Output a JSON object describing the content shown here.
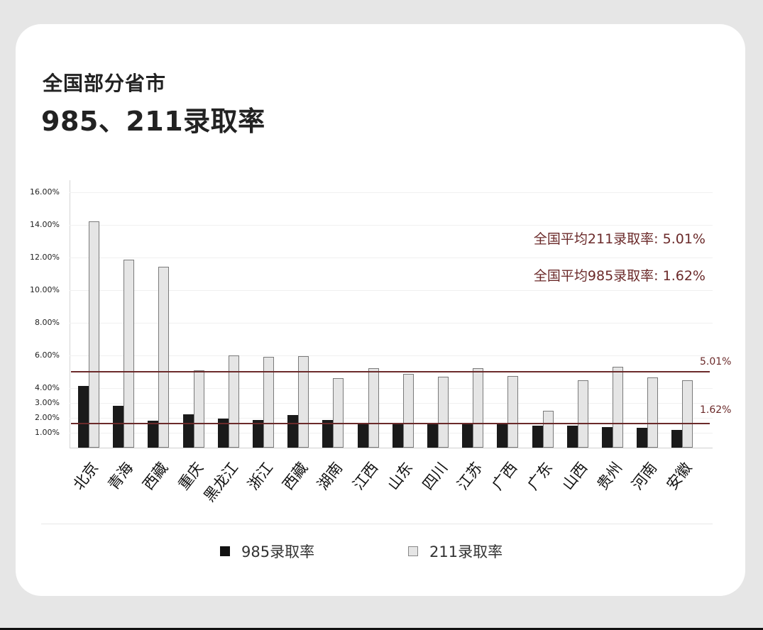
{
  "title": {
    "line1": "全国部分省市",
    "line2": "985、211录取率"
  },
  "notes": {
    "avg211": "全国平均211录取率: 5.01%",
    "avg985": "全国平均985录取率: 1.62%"
  },
  "avg_labels": {
    "avg211": "5.01%",
    "avg985": "1.62%"
  },
  "legend": {
    "s985": "985录取率",
    "s211": "211录取率"
  },
  "colors": {
    "s985": "#1a1a1a",
    "s211": "#e5e5e5",
    "avg_line": "#6b2a2a",
    "background": "#e6e6e6",
    "card": "#ffffff"
  },
  "yticks": [
    "16.00%",
    "14.00%",
    "12.00%",
    "10.00%",
    "8.00%",
    "6.00%",
    "4.00%",
    "3.00%",
    "2.00%",
    "1.00%"
  ],
  "chart_data": {
    "type": "bar",
    "title": "全国部分省市 985、211录取率",
    "xlabel": "",
    "ylabel": "",
    "categories": [
      "北京",
      "青海",
      "西藏",
      "重庆",
      "黑龙江",
      "浙江",
      "西藏",
      "湖南",
      "江西",
      "山东",
      "四川",
      "江苏",
      "广西",
      "广东",
      "山西",
      "贵州",
      "河南",
      "安徽"
    ],
    "series": [
      {
        "name": "985录取率",
        "values": [
          4.15,
          2.8,
          1.8,
          2.25,
          1.95,
          1.85,
          2.2,
          1.85,
          1.65,
          1.6,
          1.6,
          1.55,
          1.55,
          1.5,
          1.5,
          1.4,
          1.35,
          1.2
        ]
      },
      {
        "name": "211录取率",
        "values": [
          14.2,
          11.85,
          11.45,
          5.1,
          6.0,
          5.9,
          5.95,
          4.6,
          5.2,
          4.85,
          4.7,
          5.2,
          4.75,
          2.5,
          4.5,
          5.3,
          4.65,
          4.5
        ]
      }
    ],
    "reference_lines": [
      {
        "name": "全国平均211录取率",
        "value": 5.01,
        "label": "5.01%"
      },
      {
        "name": "全国平均985录取率",
        "value": 1.62,
        "label": "1.62%"
      }
    ],
    "yticks": [
      1,
      2,
      3,
      4,
      6,
      8,
      10,
      12,
      14,
      16
    ],
    "ytick_labels": [
      "1.00%",
      "2.00%",
      "3.00%",
      "4.00%",
      "6.00%",
      "8.00%",
      "10.00%",
      "12.00%",
      "14.00%",
      "16.00%"
    ],
    "ylim": [
      0,
      16
    ],
    "y_scale_note": "non-uniform axis: 1% steps below 4%, 2% steps above",
    "grid": true,
    "legend_position": "bottom",
    "units": "%"
  }
}
